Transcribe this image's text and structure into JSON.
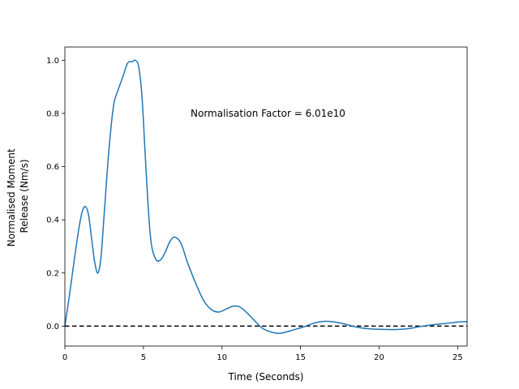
{
  "chart_data": {
    "type": "line",
    "title": "",
    "xlabel": "Time (Seconds)",
    "ylabel_lines": [
      "Normalised Moment",
      "Release (Nm/s)"
    ],
    "xlim": [
      0,
      25.6
    ],
    "ylim": [
      -0.075,
      1.05
    ],
    "xticks": [
      0,
      5,
      10,
      15,
      20,
      25
    ],
    "yticks": [
      0.0,
      0.2,
      0.4,
      0.6,
      0.8,
      1.0
    ],
    "xtick_labels": [
      "0",
      "5",
      "10",
      "15",
      "20",
      "25"
    ],
    "ytick_labels": [
      "0.0",
      "0.2",
      "0.4",
      "0.6",
      "0.8",
      "1.0"
    ],
    "grid": false,
    "annotation": {
      "text": "Normalisation Factor = 6.01e10",
      "x": 8.0,
      "y": 0.8
    },
    "reference_line": {
      "y": 0,
      "style": "dashed",
      "color": "#000000"
    },
    "series": [
      {
        "color": "#1f77b4",
        "x": [
          0,
          0.3,
          0.6,
          0.9,
          1.1,
          1.3,
          1.5,
          1.7,
          1.9,
          2.1,
          2.3,
          2.5,
          2.8,
          3.1,
          3.4,
          3.7,
          4.0,
          4.3,
          4.5,
          4.7,
          4.9,
          5.1,
          5.3,
          5.5,
          5.8,
          6.1,
          6.4,
          6.7,
          7.0,
          7.4,
          7.8,
          8.3,
          8.8,
          9.3,
          9.8,
          10.3,
          10.7,
          11.1,
          11.5,
          12.0,
          12.5,
          13.0,
          13.5,
          13.9,
          14.5,
          15.2,
          15.9,
          16.5,
          17.1,
          17.8,
          18.5,
          19.3,
          20.1,
          21.0,
          21.8,
          22.6,
          23.4,
          24.2,
          25.0,
          25.6
        ],
        "y": [
          0.0,
          0.12,
          0.25,
          0.37,
          0.43,
          0.45,
          0.42,
          0.33,
          0.24,
          0.2,
          0.26,
          0.42,
          0.66,
          0.83,
          0.89,
          0.94,
          0.99,
          0.995,
          1.0,
          0.975,
          0.87,
          0.66,
          0.45,
          0.31,
          0.25,
          0.25,
          0.28,
          0.32,
          0.335,
          0.31,
          0.24,
          0.165,
          0.1,
          0.063,
          0.053,
          0.065,
          0.075,
          0.073,
          0.055,
          0.025,
          -0.005,
          -0.02,
          -0.027,
          -0.025,
          -0.015,
          -0.003,
          0.012,
          0.018,
          0.016,
          0.008,
          -0.003,
          -0.01,
          -0.012,
          -0.013,
          -0.01,
          -0.002,
          0.005,
          0.01,
          0.015,
          0.017
        ]
      }
    ]
  }
}
